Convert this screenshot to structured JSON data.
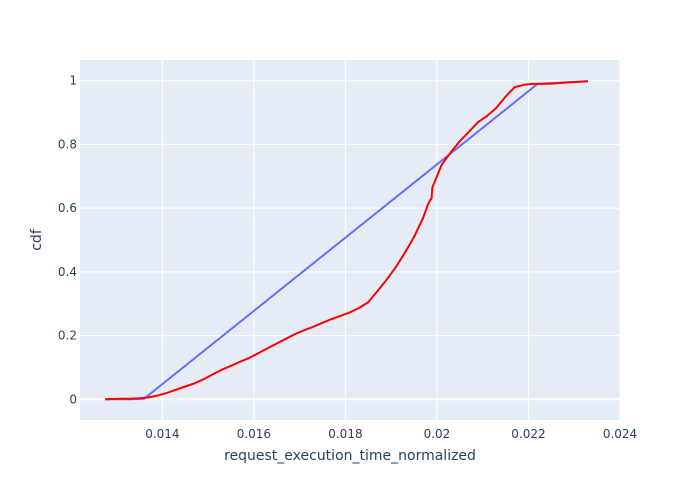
{
  "chart_data": {
    "type": "line",
    "title": "",
    "xlabel": "request_execution_time_normalized",
    "ylabel": "cdf",
    "xlim": [
      0.0122,
      0.024
    ],
    "ylim": [
      -0.065,
      1.065
    ],
    "x_ticks": [
      {
        "value": 0.014,
        "label": "0.014"
      },
      {
        "value": 0.016,
        "label": "0.016"
      },
      {
        "value": 0.018,
        "label": "0.018"
      },
      {
        "value": 0.02,
        "label": "0.02"
      },
      {
        "value": 0.022,
        "label": "0.022"
      },
      {
        "value": 0.024,
        "label": "0.024"
      }
    ],
    "y_ticks": [
      {
        "value": 0,
        "label": "0"
      },
      {
        "value": 0.2,
        "label": "0.2"
      },
      {
        "value": 0.4,
        "label": "0.4"
      },
      {
        "value": 0.6,
        "label": "0.6"
      },
      {
        "value": 0.8,
        "label": "0.8"
      },
      {
        "value": 1,
        "label": "1"
      }
    ],
    "grid": true,
    "colors": {
      "plot_bg": "#e5ecf6",
      "grid": "#ffffff",
      "line_red": "#ff0000",
      "line_blue": "#636efa"
    },
    "series": [
      {
        "color": "#636efa",
        "x": [
          0.01275,
          0.0133,
          0.0136,
          0.0222,
          0.0233
        ],
        "y": [
          0.0,
          0.0,
          0.002,
          0.99,
          0.998
        ]
      },
      {
        "color": "#ff0000",
        "x": [
          0.01275,
          0.0129,
          0.0131,
          0.0133,
          0.0135,
          0.0137,
          0.0139,
          0.0141,
          0.0143,
          0.0145,
          0.0147,
          0.0149,
          0.0151,
          0.0153,
          0.0155,
          0.0157,
          0.0159,
          0.0161,
          0.0163,
          0.0165,
          0.0167,
          0.0169,
          0.0171,
          0.0173,
          0.0175,
          0.0177,
          0.0179,
          0.0181,
          0.0183,
          0.0185,
          0.0187,
          0.0189,
          0.0191,
          0.0193,
          0.0195,
          0.0197,
          0.0198,
          0.01985,
          0.01988,
          0.0199,
          0.0201,
          0.0203,
          0.0205,
          0.0207,
          0.0209,
          0.0211,
          0.0213,
          0.0215,
          0.0217,
          0.0219,
          0.0221,
          0.0223,
          0.0225,
          0.0227,
          0.0229,
          0.0231,
          0.0233
        ],
        "y": [
          0.0,
          0.001,
          0.002,
          0.002,
          0.003,
          0.006,
          0.012,
          0.02,
          0.03,
          0.04,
          0.05,
          0.063,
          0.078,
          0.093,
          0.105,
          0.118,
          0.13,
          0.145,
          0.16,
          0.175,
          0.19,
          0.205,
          0.217,
          0.228,
          0.24,
          0.252,
          0.262,
          0.273,
          0.287,
          0.305,
          0.34,
          0.375,
          0.415,
          0.46,
          0.51,
          0.57,
          0.61,
          0.625,
          0.63,
          0.665,
          0.735,
          0.775,
          0.81,
          0.84,
          0.87,
          0.89,
          0.915,
          0.95,
          0.98,
          0.987,
          0.99,
          0.99,
          0.991,
          0.993,
          0.995,
          0.997,
          0.998
        ]
      }
    ]
  }
}
